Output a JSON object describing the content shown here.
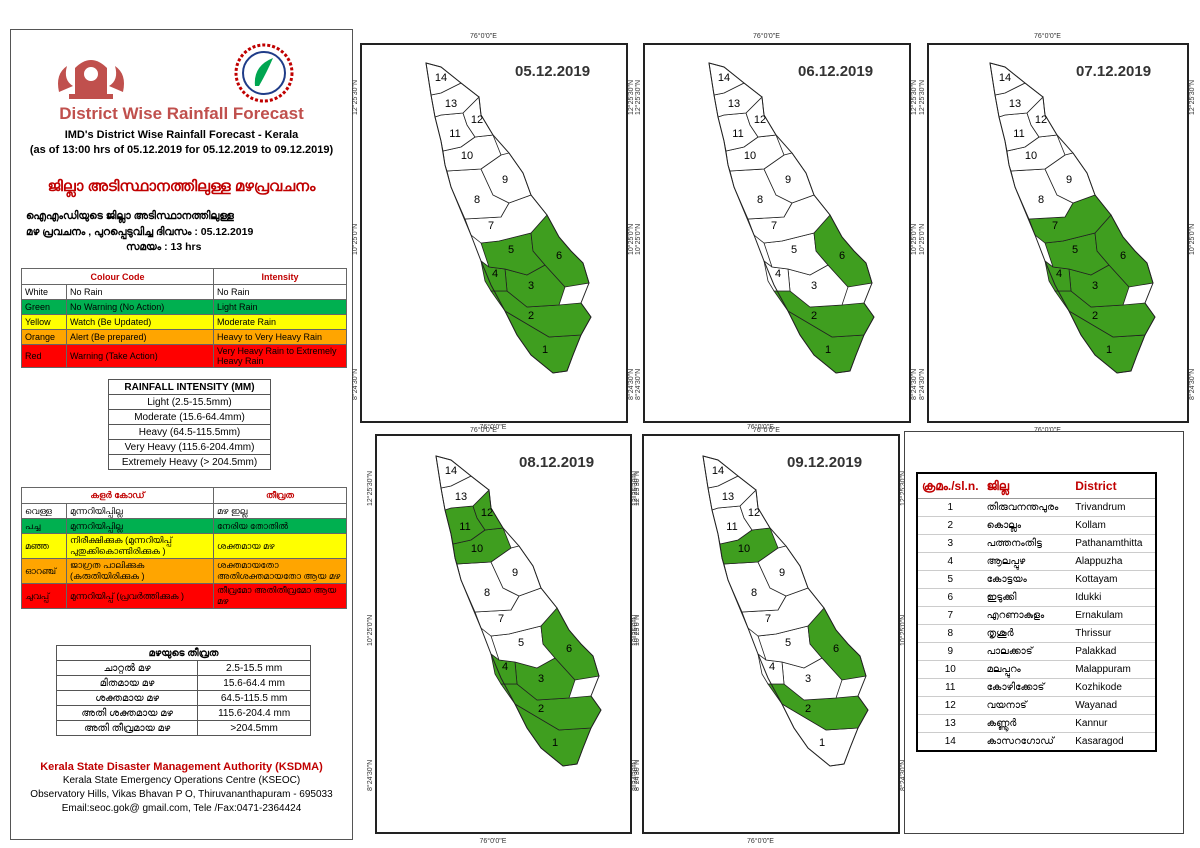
{
  "left_panel": {
    "title": "District Wise Rainfall Forecast",
    "subtitle1": "IMD's District Wise Rainfall Forecast - Kerala",
    "subtitle2": "(as of 13:00 hrs of 05.12.2019  for 05.12.2019  to 09.12.2019)",
    "ml_title": "ജില്ലാ അടിസ്ഥാനത്തിലുള്ള മഴപ്രവചനം",
    "ml_line1": "ഐഎംഡിയുടെ ജില്ലാ  അടിസ്ഥാനത്തിലുള്ള",
    "ml_line2": "മഴ പ്രവചനം , പുറപ്പെടുവിച്ച    ദിവസം : 05.12.2019",
    "ml_line3": "സമയം : 13  hrs",
    "colour_code_header": "Colour Code",
    "intensity_header": "Intensity",
    "colour_rows": [
      {
        "name": "White",
        "meaning": "No Rain",
        "intensity": "No Rain",
        "color": "#ffffff"
      },
      {
        "name": "Green",
        "meaning": "No Warning (No Action)",
        "intensity": "Light Rain",
        "color": "#00b050"
      },
      {
        "name": "Yellow",
        "meaning": "Watch (Be Updated)",
        "intensity": "Moderate Rain",
        "color": "#ffff00"
      },
      {
        "name": "Orange",
        "meaning": "Alert (Be prepared)",
        "intensity": "Heavy to Very Heavy Rain",
        "color": "#ffa500"
      },
      {
        "name": "Red",
        "meaning": "Warning (Take Action)",
        "intensity": "Very Heavy Rain to Extremely Heavy Rain",
        "color": "#ff0000"
      }
    ],
    "rainfall_header": "RAINFALL INTENSITY (MM)",
    "rainfall_rows": [
      "Light (2.5-15.5mm)",
      "Moderate (15.6-64.4mm)",
      "Heavy (64.5-115.5mm)",
      "Very Heavy (115.6-204.4mm)",
      "Extremely Heavy (> 204.5mm)"
    ],
    "ml_colour_header": "കളർ കോഡ്",
    "ml_intensity_header": "തീവ്രത",
    "ml_colour_rows": [
      {
        "name": "വെള്ള",
        "meaning": "മുന്നറിയിപ്പില്ല",
        "intensity": "മഴ ഇല്ല",
        "color": "#ffffff"
      },
      {
        "name": "പച്ച",
        "meaning": "മുന്നറിയിപ്പില്ല",
        "intensity": "നേരിയ തോതിൽ",
        "color": "#00b050"
      },
      {
        "name": "മഞ്ഞ",
        "meaning": "നിരീക്ഷിക്കുക (മുന്നറിയിപ്പ് പുതുക്കികൊണ്ടിരിക്കുക )",
        "intensity": "ശക്തമായ മഴ",
        "color": "#ffff00"
      },
      {
        "name": "ഓറഞ്ച്",
        "meaning": "ജാഗ്രത പാലിക്കുക (കരുതിയിരിക്കുക )",
        "intensity": "ശക്തമായതോ അതിശക്തമായതോ ആയ മഴ",
        "color": "#ffa500"
      },
      {
        "name": "ചുവപ്പ്",
        "meaning": "മുന്നറിയിപ്പ് (പ്രവർത്തിക്കുക )",
        "intensity": "തീവ്രമോ അതിതീവ്രമോ ആയ മഴ",
        "color": "#ff0000"
      }
    ],
    "ml_rainfall_header": "മഴയുടെ തീവ്രത",
    "ml_rainfall_rows": [
      {
        "label": "ചാറ്റൽ മഴ",
        "range": "2.5-15.5 mm"
      },
      {
        "label": "മിതമായ മഴ",
        "range": "15.6-64.4 mm"
      },
      {
        "label": "ശക്തമായ മഴ",
        "range": "64.5-115.5 mm"
      },
      {
        "label": "അതി ശക്തമായ മഴ",
        "range": "115.6-204.4 mm"
      },
      {
        "label": "അതി തീവ്രമായ മഴ",
        "range": ">204.5mm"
      }
    ],
    "footer_title": "Kerala State Disaster Management Authority (KSDMA)",
    "footer_line1": "Kerala State Emergency Operations Centre (KSEOC)",
    "footer_line2": "Observatory Hills, Vikas Bhavan P O, Thiruvananthapuram - 695033",
    "footer_line3": "Email:seoc.gok@ gmail.com, Tele /Fax:0471-2364424"
  },
  "coords": {
    "lon": "76°0'0\"E",
    "lat_north": "12°25'30\"N",
    "lat_mid": "10°25'0\"N",
    "lat_south": "8°24'30\"N"
  },
  "map_colors": {
    "light_rain": "#3f9e1f",
    "no_rain": "#ffffff"
  },
  "maps": [
    {
      "date": "05.12.2019",
      "green_districts": [
        1,
        2,
        3,
        4,
        5,
        6
      ]
    },
    {
      "date": "06.12.2019",
      "green_districts": [
        1,
        2,
        6
      ]
    },
    {
      "date": "07.12.2019",
      "green_districts": [
        1,
        2,
        3,
        4,
        5,
        6,
        7
      ]
    },
    {
      "date": "08.12.2019",
      "green_districts": [
        1,
        2,
        3,
        4,
        6,
        10,
        11,
        12
      ]
    },
    {
      "date": "09.12.2019",
      "green_districts": [
        2,
        6,
        10
      ]
    }
  ],
  "district_table": {
    "headers": [
      "ക്രമം./sl.n.",
      "ജില്ല",
      "District"
    ],
    "rows": [
      [
        "1",
        "തിരുവനന്തപുരം",
        "Trivandrum"
      ],
      [
        "2",
        "കൊല്ലം",
        "Kollam"
      ],
      [
        "3",
        "പത്തനംതിട്ട",
        "Pathanamthitta"
      ],
      [
        "4",
        "ആലപ്പുഴ",
        "Alappuzha"
      ],
      [
        "5",
        "കോട്ടയം",
        "Kottayam"
      ],
      [
        "6",
        "ഇടുക്കി",
        "Idukki"
      ],
      [
        "7",
        "എറണാകുളം",
        "Ernakulam"
      ],
      [
        "8",
        "തൃശൂർ",
        "Thrissur"
      ],
      [
        "9",
        "പാലക്കാട്",
        "Palakkad"
      ],
      [
        "10",
        "മലപ്പുറം",
        "Malappuram"
      ],
      [
        "11",
        "കോഴിക്കോട്",
        "Kozhikode"
      ],
      [
        "12",
        "വയനാട്",
        "Wayanad"
      ],
      [
        "13",
        "കണ്ണൂർ",
        "Kannur"
      ],
      [
        "14",
        "കാസറഗോഡ്",
        "Kasaragod"
      ]
    ]
  }
}
